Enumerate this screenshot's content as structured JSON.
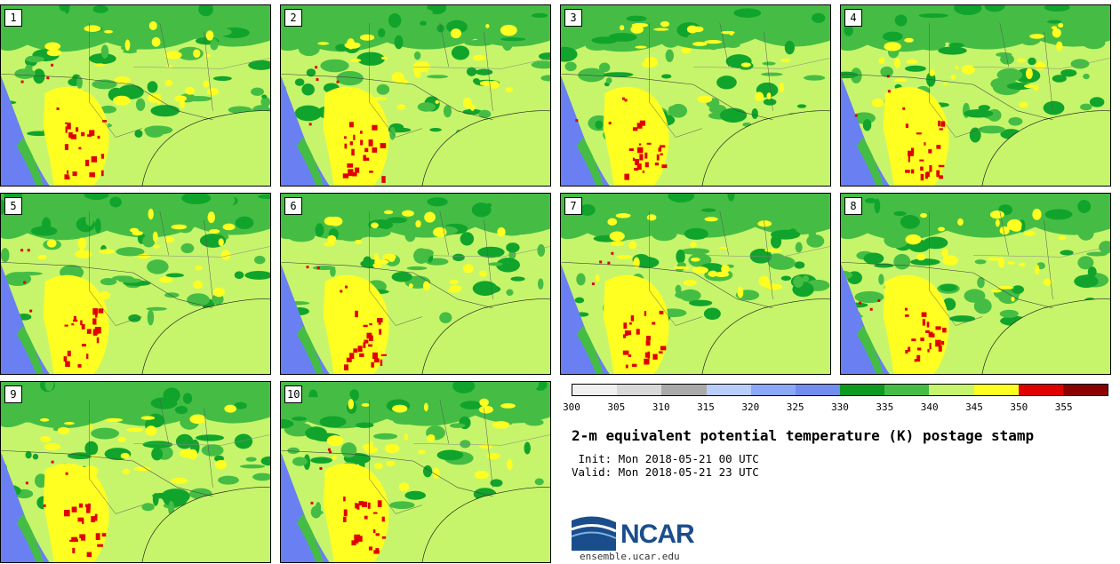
{
  "panels": [
    {
      "label": "1"
    },
    {
      "label": "2"
    },
    {
      "label": "3"
    },
    {
      "label": "4"
    },
    {
      "label": "5"
    },
    {
      "label": "6"
    },
    {
      "label": "7"
    },
    {
      "label": "8"
    },
    {
      "label": "9"
    },
    {
      "label": "10"
    }
  ],
  "colors": {
    "ocean": "#6a7ff2",
    "land_base": "#c6f56b",
    "green_mid": "#45bd45",
    "green_dark": "#11a42c",
    "yellow": "#ffff22",
    "red": "#e00000",
    "darkred": "#8b0000"
  },
  "colorbar": {
    "segments": [
      "#f0f0f0",
      "#d8d8d8",
      "#a9a9a9",
      "#b8cdfa",
      "#8aa8f5",
      "#728cf0",
      "#0d9a20",
      "#45bd45",
      "#c6f56b",
      "#ffff22",
      "#e00000",
      "#8b0000"
    ],
    "ticks": [
      "300",
      "305",
      "310",
      "315",
      "320",
      "325",
      "330",
      "335",
      "340",
      "345",
      "350",
      "355"
    ]
  },
  "title": "2-m equivalent potential temperature (K) postage stamp",
  "init_label": " Init: Mon 2018-05-21 00 UTC",
  "valid_label": "Valid: Mon 2018-05-21 23 UTC",
  "logo_text": "NCAR",
  "url": "ensemble.ucar.edu"
}
